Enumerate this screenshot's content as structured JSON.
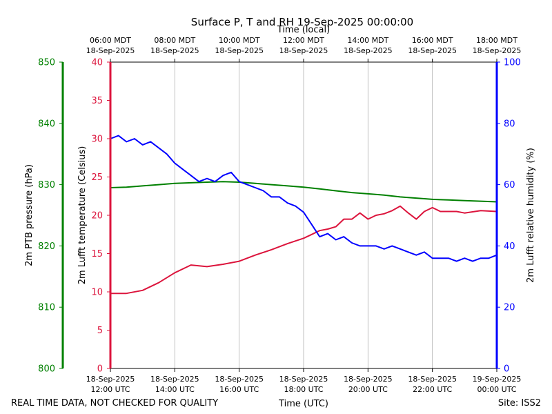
{
  "chart_data": {
    "type": "line",
    "title": "Surface P, T and RH 19-Sep-2025 00:00:00",
    "top_axis": {
      "label": "Time (local)",
      "ticks": [
        {
          "hour": 0,
          "line1": "06:00 MDT",
          "line2": "18-Sep-2025"
        },
        {
          "hour": 2,
          "line1": "08:00 MDT",
          "line2": "18-Sep-2025"
        },
        {
          "hour": 4,
          "line1": "10:00 MDT",
          "line2": "18-Sep-2025"
        },
        {
          "hour": 6,
          "line1": "12:00 MDT",
          "line2": "18-Sep-2025"
        },
        {
          "hour": 8,
          "line1": "14:00 MDT",
          "line2": "18-Sep-2025"
        },
        {
          "hour": 10,
          "line1": "16:00 MDT",
          "line2": "18-Sep-2025"
        },
        {
          "hour": 12,
          "line1": "18:00 MDT",
          "line2": "18-Sep-2025"
        }
      ]
    },
    "bottom_axis": {
      "label": "Time (UTC)",
      "ticks": [
        {
          "hour": 0,
          "line1": "18-Sep-2025",
          "line2": "12:00 UTC"
        },
        {
          "hour": 2,
          "line1": "18-Sep-2025",
          "line2": "14:00 UTC"
        },
        {
          "hour": 4,
          "line1": "18-Sep-2025",
          "line2": "16:00 UTC"
        },
        {
          "hour": 6,
          "line1": "18-Sep-2025",
          "line2": "18:00 UTC"
        },
        {
          "hour": 8,
          "line1": "18-Sep-2025",
          "line2": "20:00 UTC"
        },
        {
          "hour": 10,
          "line1": "18-Sep-2025",
          "line2": "22:00 UTC"
        },
        {
          "hour": 12,
          "line1": "19-Sep-2025",
          "line2": "00:00 UTC"
        }
      ]
    },
    "xlim": [
      0,
      12
    ],
    "grid": "vertical",
    "axes": {
      "pressure": {
        "label": "2m PTB pressure (hPa)",
        "color": "#008000",
        "ylim": [
          800,
          850
        ],
        "ticks": [
          800,
          810,
          820,
          830,
          840,
          850
        ]
      },
      "temperature": {
        "label": "2m Lufft temperature (Celsius)",
        "color": "#dc143c",
        "ylim": [
          0,
          40
        ],
        "ticks": [
          0,
          5,
          10,
          15,
          20,
          25,
          30,
          35,
          40
        ]
      },
      "humidity": {
        "label": "2m Lufft relative humidity (%)",
        "color": "#0000ff",
        "ylim": [
          0,
          100
        ],
        "ticks": [
          0,
          20,
          40,
          60,
          80,
          100
        ]
      }
    },
    "series": [
      {
        "axis": "pressure",
        "color": "#008000",
        "x": [
          0,
          0.5,
          1,
          1.5,
          2,
          2.5,
          3,
          3.5,
          4,
          4.5,
          5,
          5.5,
          6,
          6.5,
          7,
          7.5,
          8,
          8.5,
          9,
          9.5,
          10,
          10.5,
          11,
          11.5,
          12
        ],
        "values": [
          829.5,
          829.6,
          829.8,
          830.0,
          830.2,
          830.3,
          830.4,
          830.5,
          830.4,
          830.2,
          830.0,
          829.8,
          829.6,
          829.3,
          829.0,
          828.7,
          828.5,
          828.3,
          828.0,
          827.8,
          827.6,
          827.5,
          827.4,
          827.3,
          827.2
        ]
      },
      {
        "axis": "temperature",
        "color": "#dc143c",
        "x": [
          0,
          0.5,
          1,
          1.5,
          2,
          2.5,
          3,
          3.5,
          4,
          4.5,
          5,
          5.5,
          6,
          6.25,
          6.5,
          6.75,
          7,
          7.25,
          7.5,
          7.75,
          8,
          8.25,
          8.5,
          8.75,
          9,
          9.25,
          9.5,
          9.75,
          10,
          10.25,
          10.5,
          10.75,
          11,
          11.5,
          12
        ],
        "values": [
          9.8,
          9.8,
          10.2,
          11.2,
          12.5,
          13.5,
          13.3,
          13.6,
          14.0,
          14.8,
          15.5,
          16.3,
          17.0,
          17.5,
          18.0,
          18.2,
          18.5,
          19.5,
          19.5,
          20.3,
          19.5,
          20.0,
          20.2,
          20.6,
          21.2,
          20.3,
          19.5,
          20.5,
          21.0,
          20.5,
          20.5,
          20.5,
          20.3,
          20.6,
          20.5
        ]
      },
      {
        "axis": "humidity",
        "color": "#0000ff",
        "x": [
          0,
          0.25,
          0.5,
          0.75,
          1,
          1.25,
          1.5,
          1.75,
          2,
          2.25,
          2.5,
          2.75,
          3,
          3.25,
          3.5,
          3.75,
          4,
          4.25,
          4.5,
          4.75,
          5,
          5.25,
          5.5,
          5.75,
          6,
          6.25,
          6.5,
          6.75,
          7,
          7.25,
          7.5,
          7.75,
          8,
          8.25,
          8.5,
          8.75,
          9,
          9.25,
          9.5,
          9.75,
          10,
          10.25,
          10.5,
          10.75,
          11,
          11.25,
          11.5,
          11.75,
          12
        ],
        "values": [
          75,
          76,
          74,
          75,
          73,
          74,
          72,
          70,
          67,
          65,
          63,
          61,
          62,
          61,
          63,
          64,
          61,
          60,
          59,
          58,
          56,
          56,
          54,
          53,
          51,
          47,
          43,
          44,
          42,
          43,
          41,
          40,
          40,
          40,
          39,
          40,
          39,
          38,
          37,
          38,
          36,
          36,
          36,
          35,
          36,
          35,
          36,
          36,
          37
        ]
      }
    ]
  },
  "footer": {
    "left": "REAL TIME DATA, NOT CHECKED FOR QUALITY",
    "right": "Site: ISS2"
  }
}
